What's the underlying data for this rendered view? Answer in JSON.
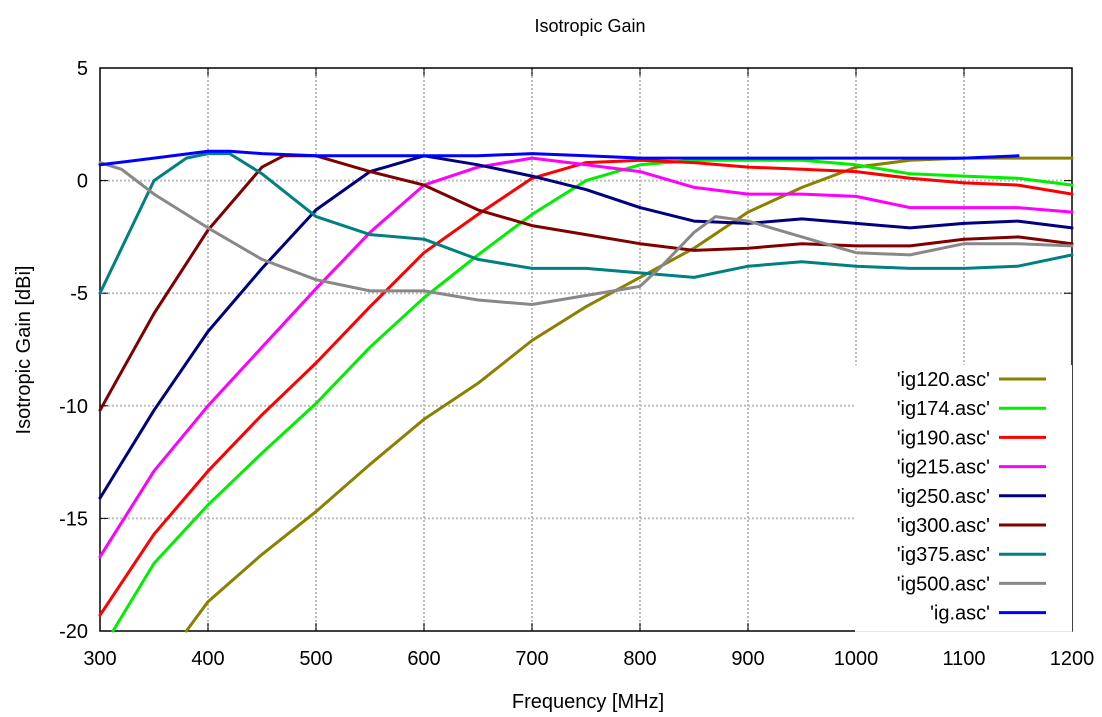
{
  "chart_data": {
    "type": "line",
    "title": "Isotropic Gain",
    "xlabel": "Frequency [MHz]",
    "ylabel": "Isotropic Gain [dBi]",
    "xlim": [
      300,
      1200
    ],
    "ylim": [
      -20,
      5
    ],
    "xticks": [
      300,
      400,
      500,
      600,
      700,
      800,
      900,
      1000,
      1100,
      1200
    ],
    "yticks": [
      -20,
      -15,
      -10,
      -5,
      0,
      5
    ],
    "grid": true,
    "legend_position": "bottom-right",
    "series": [
      {
        "name": "'ig120.asc'",
        "color": "#8b8000",
        "x": [
          380,
          400,
          450,
          500,
          550,
          600,
          650,
          700,
          750,
          800,
          850,
          900,
          950,
          1000,
          1050,
          1100,
          1150,
          1200
        ],
        "y": [
          -20,
          -18.7,
          -16.6,
          -14.7,
          -12.6,
          -10.6,
          -9.0,
          -7.1,
          -5.6,
          -4.3,
          -3.0,
          -1.4,
          -0.3,
          0.6,
          0.9,
          1.0,
          1.0,
          1.0
        ]
      },
      {
        "name": "'ig174.asc'",
        "color": "#00ee00",
        "x": [
          312,
          350,
          400,
          450,
          500,
          550,
          600,
          650,
          700,
          750,
          800,
          850,
          900,
          950,
          1000,
          1050,
          1100,
          1150,
          1200
        ],
        "y": [
          -20,
          -17.0,
          -14.4,
          -12.1,
          -9.9,
          -7.4,
          -5.2,
          -3.3,
          -1.5,
          0.0,
          0.7,
          0.9,
          0.9,
          0.9,
          0.7,
          0.3,
          0.2,
          0.1,
          -0.2
        ]
      },
      {
        "name": "'ig190.asc'",
        "color": "#ff0000",
        "x": [
          300,
          350,
          400,
          450,
          500,
          550,
          600,
          650,
          700,
          750,
          800,
          850,
          900,
          950,
          1000,
          1050,
          1100,
          1150,
          1200
        ],
        "y": [
          -19.3,
          -15.7,
          -12.9,
          -10.4,
          -8.1,
          -5.6,
          -3.2,
          -1.5,
          0.1,
          0.8,
          0.9,
          0.8,
          0.6,
          0.5,
          0.4,
          0.1,
          -0.1,
          -0.2,
          -0.6
        ]
      },
      {
        "name": "'ig215.asc'",
        "color": "#ff00ff",
        "x": [
          300,
          350,
          400,
          450,
          500,
          550,
          600,
          650,
          700,
          750,
          800,
          850,
          900,
          950,
          1000,
          1050,
          1100,
          1150,
          1200
        ],
        "y": [
          -16.7,
          -12.9,
          -10.0,
          -7.4,
          -4.8,
          -2.3,
          -0.2,
          0.6,
          1.0,
          0.7,
          0.4,
          -0.3,
          -0.6,
          -0.6,
          -0.7,
          -1.2,
          -1.2,
          -1.2,
          -1.4
        ]
      },
      {
        "name": "'ig250.asc'",
        "color": "#000080",
        "x": [
          300,
          350,
          400,
          450,
          500,
          550,
          600,
          650,
          700,
          750,
          800,
          850,
          900,
          950,
          1000,
          1050,
          1100,
          1150,
          1200
        ],
        "y": [
          -14.1,
          -10.2,
          -6.7,
          -3.9,
          -1.3,
          0.4,
          1.1,
          0.7,
          0.2,
          -0.4,
          -1.2,
          -1.8,
          -1.9,
          -1.7,
          -1.9,
          -2.1,
          -1.9,
          -1.8,
          -2.1
        ]
      },
      {
        "name": "'ig300.asc'",
        "color": "#800000",
        "x": [
          300,
          350,
          400,
          450,
          470,
          500,
          550,
          600,
          650,
          700,
          750,
          800,
          850,
          900,
          950,
          1000,
          1050,
          1100,
          1150,
          1200
        ],
        "y": [
          -10.2,
          -5.9,
          -2.2,
          0.6,
          1.1,
          1.1,
          0.4,
          -0.2,
          -1.3,
          -2.0,
          -2.4,
          -2.8,
          -3.1,
          -3.0,
          -2.8,
          -2.9,
          -2.9,
          -2.6,
          -2.5,
          -2.8
        ]
      },
      {
        "name": "'ig375.asc'",
        "color": "#008080",
        "x": [
          300,
          320,
          350,
          380,
          400,
          420,
          450,
          500,
          550,
          600,
          650,
          700,
          750,
          800,
          850,
          900,
          950,
          1000,
          1050,
          1100,
          1150,
          1200
        ],
        "y": [
          -5.0,
          -3.0,
          0.0,
          1.0,
          1.2,
          1.2,
          0.3,
          -1.6,
          -2.4,
          -2.6,
          -3.5,
          -3.9,
          -3.9,
          -4.1,
          -4.3,
          -3.8,
          -3.6,
          -3.8,
          -3.9,
          -3.9,
          -3.8,
          -3.3
        ]
      },
      {
        "name": "'ig500.asc'",
        "color": "#888888",
        "x": [
          300,
          320,
          350,
          400,
          450,
          500,
          550,
          600,
          650,
          700,
          750,
          800,
          820,
          850,
          870,
          900,
          950,
          1000,
          1050,
          1100,
          1150,
          1200
        ],
        "y": [
          0.8,
          0.5,
          -0.6,
          -2.1,
          -3.5,
          -4.4,
          -4.9,
          -4.9,
          -5.3,
          -5.5,
          -5.1,
          -4.7,
          -3.8,
          -2.3,
          -1.6,
          -1.8,
          -2.5,
          -3.2,
          -3.3,
          -2.8,
          -2.8,
          -2.9
        ]
      },
      {
        "name": "'ig.asc'",
        "color": "#0000ff",
        "x": [
          300,
          350,
          400,
          420,
          450,
          500,
          550,
          600,
          650,
          700,
          750,
          800,
          850,
          900,
          950,
          1000,
          1050,
          1100,
          1150
        ],
        "y": [
          0.7,
          1.0,
          1.3,
          1.3,
          1.2,
          1.1,
          1.1,
          1.1,
          1.1,
          1.2,
          1.1,
          1.0,
          1.0,
          1.0,
          1.0,
          1.0,
          1.0,
          1.0,
          1.1
        ]
      }
    ]
  }
}
